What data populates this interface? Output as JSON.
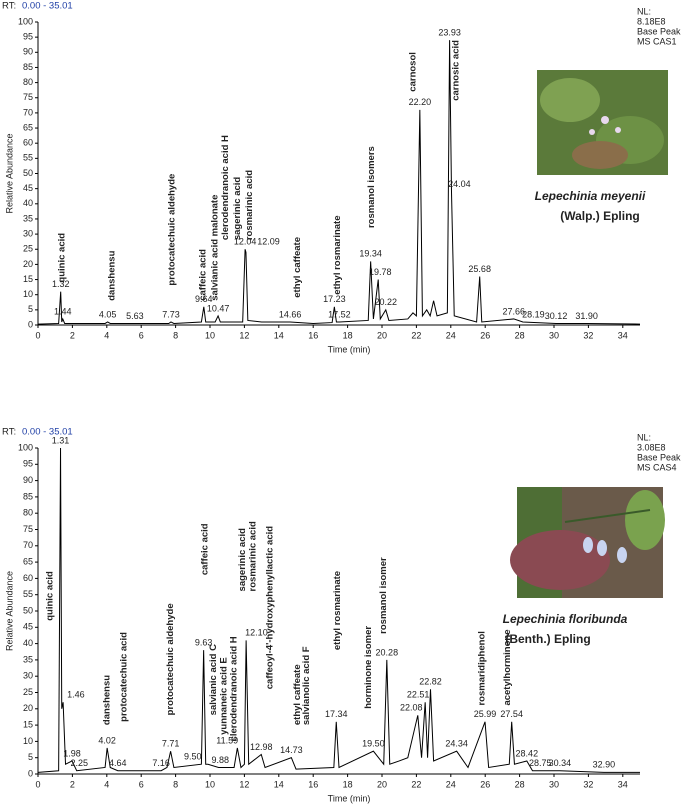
{
  "chart_data": [
    {
      "type": "line",
      "rt_label": "RT:",
      "rt_range": "0.00 - 35.01",
      "nl": [
        "NL:",
        "8.18E8",
        "Base Peak",
        "MS CAS1"
      ],
      "species": "Lepechinia meyenii",
      "authority": "(Walp.) Epling",
      "ylabel": "Relative Abundance",
      "xlabel": "Time (min)",
      "color": "#000000",
      "xlim": [
        0,
        35
      ],
      "ylim": [
        0,
        100
      ],
      "xticks": [
        0,
        2,
        4,
        6,
        8,
        10,
        12,
        14,
        16,
        18,
        20,
        22,
        24,
        26,
        28,
        30,
        32,
        34
      ],
      "yticks": [
        0,
        5,
        10,
        15,
        20,
        25,
        30,
        35,
        40,
        45,
        50,
        55,
        60,
        65,
        70,
        75,
        80,
        85,
        90,
        95,
        100
      ],
      "x": [
        0,
        1.2,
        1.32,
        1.38,
        1.44,
        1.55,
        3.9,
        4.05,
        4.2,
        5.63,
        7.6,
        7.73,
        7.9,
        9.5,
        9.64,
        9.75,
        10.3,
        10.47,
        10.6,
        11.9,
        12.04,
        12.09,
        12.2,
        13,
        14.66,
        16,
        17.1,
        17.23,
        17.35,
        17.52,
        19.2,
        19.34,
        19.5,
        19.78,
        19.9,
        20.22,
        20.4,
        21.5,
        21.8,
        22.0,
        22.2,
        22.35,
        22.6,
        22.8,
        23.0,
        23.2,
        23.8,
        23.93,
        24.04,
        24.2,
        25.5,
        25.68,
        25.8,
        27.66,
        28.19,
        30.12,
        31.9,
        35
      ],
      "values": [
        0.3,
        0.5,
        11,
        1,
        2,
        0.5,
        0.5,
        1,
        0.5,
        0.5,
        0.5,
        1,
        0.5,
        1,
        6,
        1,
        1,
        3,
        1,
        1,
        25,
        24,
        1.5,
        1,
        1,
        0.5,
        0.8,
        6,
        1,
        1,
        1.5,
        21,
        2,
        15,
        2,
        5,
        1.5,
        2,
        4,
        3,
        71,
        3,
        5,
        3,
        8,
        3,
        4,
        94,
        44,
        3,
        1,
        16,
        1,
        2,
        1,
        0.5,
        0.5,
        0.3
      ],
      "peaks": [
        {
          "label": "1.32",
          "x": 1.32,
          "y": 11
        },
        {
          "label": "1.44",
          "x": 1.44,
          "y": 2
        },
        {
          "label": "4.05",
          "x": 4.05,
          "y": 1
        },
        {
          "label": "5.63",
          "x": 5.63,
          "y": 0.5
        },
        {
          "label": "7.73",
          "x": 7.73,
          "y": 1
        },
        {
          "label": "9.64",
          "x": 9.64,
          "y": 6
        },
        {
          "label": "10.47",
          "x": 10.47,
          "y": 3
        },
        {
          "label": "12.04",
          "x": 12.04,
          "y": 25
        },
        {
          "label": "12.09",
          "x": 13.4,
          "y": 25
        },
        {
          "label": "14.66",
          "x": 14.66,
          "y": 1
        },
        {
          "label": "17.23",
          "x": 17.23,
          "y": 6
        },
        {
          "label": "17.52",
          "x": 17.52,
          "y": 1
        },
        {
          "label": "19.34",
          "x": 19.34,
          "y": 21
        },
        {
          "label": "19.78",
          "x": 19.9,
          "y": 15
        },
        {
          "label": "20.22",
          "x": 20.22,
          "y": 5
        },
        {
          "label": "22.20",
          "x": 22.2,
          "y": 71
        },
        {
          "label": "23.93",
          "x": 23.93,
          "y": 94
        },
        {
          "label": "24.04",
          "x": 24.5,
          "y": 44
        },
        {
          "label": "25.68",
          "x": 25.68,
          "y": 16
        },
        {
          "label": "27.66",
          "x": 27.66,
          "y": 2
        },
        {
          "label": "28.19",
          "x": 28.8,
          "y": 1
        },
        {
          "label": "30.12",
          "x": 30.12,
          "y": 0.5
        },
        {
          "label": "31.90",
          "x": 31.9,
          "y": 0.5
        }
      ],
      "compounds": [
        {
          "text": "quinic acid",
          "x": 1.4,
          "y": 14
        },
        {
          "text": "danshensu",
          "x": 4.3,
          "y": 8
        },
        {
          "text": "protocatechuic aldehyde",
          "x": 7.8,
          "y": 13
        },
        {
          "text": "caffeic acid",
          "x": 9.6,
          "y": 8
        },
        {
          "text": "salvianic acid malonate",
          "x": 10.3,
          "y": 8
        },
        {
          "text": "clerodendranoic acid H",
          "x": 10.9,
          "y": 28
        },
        {
          "text": "sagerinic acid",
          "x": 11.6,
          "y": 28
        },
        {
          "text": "rosmarinic acid",
          "x": 12.3,
          "y": 28
        },
        {
          "text": "ethyl caffeate",
          "x": 15.1,
          "y": 9
        },
        {
          "text": "ethyl rosmarinate",
          "x": 17.4,
          "y": 10
        },
        {
          "text": "rosmanol isomers",
          "x": 19.4,
          "y": 32
        },
        {
          "text": "carnosol",
          "x": 21.8,
          "y": 77
        },
        {
          "text": "carnosic acid",
          "x": 24.3,
          "y": 74
        }
      ]
    },
    {
      "type": "line",
      "rt_label": "RT:",
      "rt_range": "0.00 - 35.01",
      "nl": [
        "NL:",
        "3.08E8",
        "Base Peak",
        "MS CAS4"
      ],
      "species": "Lepechinia floribunda",
      "authority": "(Benth.) Epling",
      "ylabel": "Relative Abundance",
      "xlabel": "Time (min)",
      "color": "#000000",
      "xlim": [
        0,
        35
      ],
      "ylim": [
        0,
        100
      ],
      "xticks": [
        0,
        2,
        4,
        6,
        8,
        10,
        12,
        14,
        16,
        18,
        20,
        22,
        24,
        26,
        28,
        30,
        32,
        34
      ],
      "yticks": [
        0,
        5,
        10,
        15,
        20,
        25,
        30,
        35,
        40,
        45,
        50,
        55,
        60,
        65,
        70,
        75,
        80,
        85,
        90,
        95,
        100
      ],
      "x": [
        0,
        1.2,
        1.31,
        1.38,
        1.46,
        1.6,
        1.98,
        2.25,
        3.9,
        4.02,
        4.2,
        4.64,
        7.16,
        7.5,
        7.71,
        7.9,
        9.5,
        9.63,
        9.75,
        9.88,
        10.5,
        11.4,
        11.59,
        11.8,
        12.0,
        12.1,
        12.25,
        12.98,
        13.2,
        14.73,
        15,
        17.2,
        17.34,
        17.5,
        19.5,
        20.1,
        20.28,
        20.45,
        21,
        21.5,
        22.08,
        22.3,
        22.51,
        22.65,
        22.82,
        23.0,
        24.34,
        25.0,
        25.99,
        26.2,
        27.4,
        27.54,
        27.7,
        28.42,
        28.75,
        30.34,
        32.9,
        35
      ],
      "values": [
        0.5,
        1,
        100,
        20,
        22,
        3,
        4,
        1,
        2,
        8,
        2,
        1,
        1,
        2,
        7,
        2,
        3,
        38,
        3,
        3,
        2,
        2,
        8,
        2,
        3,
        41,
        3,
        6,
        2,
        5,
        1.5,
        2,
        16,
        2,
        7,
        3,
        35,
        3,
        4,
        5,
        18,
        5,
        22,
        5,
        26,
        4,
        7,
        2,
        16,
        2,
        3,
        16,
        3,
        4,
        1,
        1,
        0.5,
        0.5
      ],
      "peaks": [
        {
          "label": "1.31",
          "x": 1.31,
          "y": 100
        },
        {
          "label": "1.46",
          "x": 2.2,
          "y": 22
        },
        {
          "label": "1.98",
          "x": 1.98,
          "y": 4
        },
        {
          "label": "2.25",
          "x": 2.4,
          "y": 1
        },
        {
          "label": "4.02",
          "x": 4.02,
          "y": 8
        },
        {
          "label": "4.64",
          "x": 4.64,
          "y": 1
        },
        {
          "label": "7.16",
          "x": 7.16,
          "y": 1
        },
        {
          "label": "7.71",
          "x": 7.71,
          "y": 7
        },
        {
          "label": "9.50",
          "x": 9.0,
          "y": 3
        },
        {
          "label": "9.63",
          "x": 9.63,
          "y": 38
        },
        {
          "label": "9.88",
          "x": 10.6,
          "y": 2
        },
        {
          "label": "11.59",
          "x": 11.0,
          "y": 8
        },
        {
          "label": "12.10",
          "x": 12.7,
          "y": 41
        },
        {
          "label": "12.98",
          "x": 12.98,
          "y": 6
        },
        {
          "label": "14.73",
          "x": 14.73,
          "y": 5
        },
        {
          "label": "17.34",
          "x": 17.34,
          "y": 16
        },
        {
          "label": "19.50",
          "x": 19.5,
          "y": 7
        },
        {
          "label": "20.28",
          "x": 20.28,
          "y": 35
        },
        {
          "label": "22.08",
          "x": 21.7,
          "y": 18
        },
        {
          "label": "22.51",
          "x": 22.1,
          "y": 22
        },
        {
          "label": "22.82",
          "x": 22.82,
          "y": 26
        },
        {
          "label": "24.34",
          "x": 24.34,
          "y": 7
        },
        {
          "label": "25.99",
          "x": 25.99,
          "y": 16
        },
        {
          "label": "27.54",
          "x": 27.54,
          "y": 16
        },
        {
          "label": "28.42",
          "x": 28.42,
          "y": 4
        },
        {
          "label": "28.75",
          "x": 29.2,
          "y": 1
        },
        {
          "label": "30.34",
          "x": 30.34,
          "y": 1
        },
        {
          "label": "32.90",
          "x": 32.9,
          "y": 0.5
        }
      ],
      "compounds": [
        {
          "text": "quinic acid",
          "x": 0.7,
          "y": 47
        },
        {
          "text": "danshensu",
          "x": 4.0,
          "y": 15
        },
        {
          "text": "protocatechuic acid",
          "x": 5.0,
          "y": 16
        },
        {
          "text": "protocatechuic aldehyde",
          "x": 7.7,
          "y": 18
        },
        {
          "text": "caffeic acid",
          "x": 9.7,
          "y": 61
        },
        {
          "text": "salvianic acid C",
          "x": 10.2,
          "y": 18
        },
        {
          "text": "yunnaneic acid E",
          "x": 10.8,
          "y": 12
        },
        {
          "text": "clerodendranoic acid H",
          "x": 11.4,
          "y": 10
        },
        {
          "text": "sagerinic acid",
          "x": 11.9,
          "y": 56
        },
        {
          "text": "rosmarinic acid",
          "x": 12.5,
          "y": 56
        },
        {
          "text": "caffeoyl-4'-hydroxyphenyllactic acid",
          "x": 13.5,
          "y": 26
        },
        {
          "text": "ethyl caffeate",
          "x": 15.1,
          "y": 15
        },
        {
          "text": "salvianolic acid F",
          "x": 15.6,
          "y": 15
        },
        {
          "text": "ethyl rosmarinate",
          "x": 17.4,
          "y": 38
        },
        {
          "text": "horminone isomer",
          "x": 19.2,
          "y": 20
        },
        {
          "text": "rosmanol isomer",
          "x": 20.1,
          "y": 43
        },
        {
          "text": "rosmaridiphenol",
          "x": 25.8,
          "y": 21
        },
        {
          "text": "acetylhorminone",
          "x": 27.3,
          "y": 21
        }
      ]
    }
  ]
}
